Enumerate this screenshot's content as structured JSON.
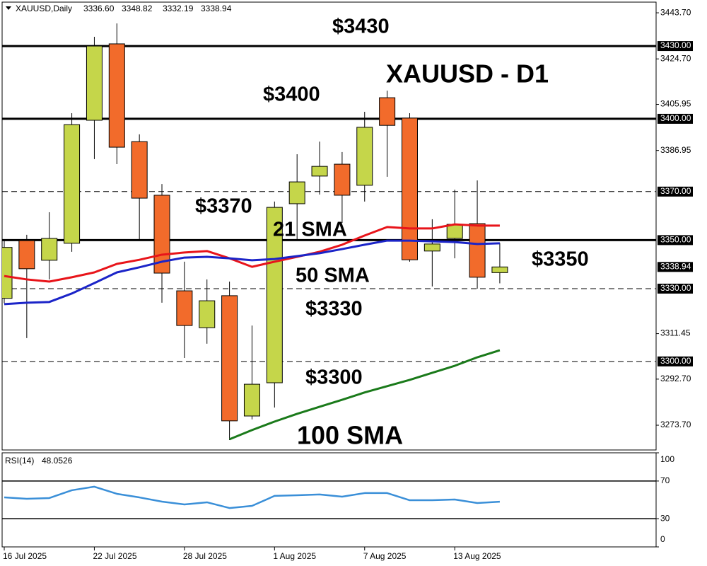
{
  "chart_data": {
    "type": "candlestick",
    "title": "XAUUSD,Daily",
    "ohlc_header": [
      {
        "value": 3336.6,
        "label": "3336.60"
      },
      {
        "value": 3348.82,
        "label": "3348.82"
      },
      {
        "value": 3332.19,
        "label": "3332.19"
      },
      {
        "value": 3338.94,
        "label": "3338.94"
      }
    ],
    "categories": [
      "16 Jul 2025",
      null,
      null,
      null,
      "22 Jul 2025",
      null,
      null,
      null,
      "28 Jul 2025",
      null,
      null,
      null,
      "1 Aug 2025",
      null,
      null,
      null,
      "7 Aug 2025",
      null,
      null,
      null,
      "13 Aug 2025",
      null,
      null
    ],
    "open": [
      3326.0,
      3349.8,
      3341.7,
      3348.7,
      3399.4,
      3430.9,
      3390.6,
      3368.5,
      3329.1,
      3313.9,
      3327.1,
      3277.5,
      3291.2,
      3365.0,
      3376.4,
      3381.3,
      3372.6,
      3408.7,
      3400.3,
      3345.5,
      3350.7,
      3356.8,
      3336.6
    ],
    "high": [
      3350.0,
      3352.2,
      3361.5,
      3402.3,
      3433.8,
      3439.3,
      3393.6,
      3373.1,
      3341.1,
      3333.8,
      3332.9,
      3314.8,
      3365.9,
      3385.4,
      3390.6,
      3386.3,
      3402.9,
      3411.6,
      3402.3,
      3358.6,
      3370.8,
      3374.6,
      3348.82
    ],
    "low": [
      3324.0,
      3309.6,
      3333.8,
      3345.2,
      3383.4,
      3381.3,
      3350.4,
      3324.2,
      3301.4,
      3307.3,
      3267.6,
      3276.1,
      3281.0,
      3349.8,
      3368.8,
      3357.1,
      3365.9,
      3376.1,
      3341.1,
      3330.9,
      3342.5,
      3330.0,
      3332.19
    ],
    "close": [
      3347.0,
      3338.2,
      3350.7,
      3397.6,
      3430.0,
      3388.3,
      3367.3,
      3336.4,
      3314.8,
      3325.0,
      3275.5,
      3290.6,
      3363.5,
      3374.0,
      3380.4,
      3368.5,
      3396.5,
      3397.3,
      3341.9,
      3348.4,
      3356.5,
      3334.7,
      3338.94
    ],
    "up_color": "#c5d64a",
    "down_color": "#f26b2b",
    "ylim": [
      3263.5,
      3448.1
    ],
    "yticks": [
      {
        "value": 3443.7,
        "label": "3443.70"
      },
      {
        "value": 3424.7,
        "label": "3424.70"
      },
      {
        "value": 3405.95,
        "label": "3405.95"
      },
      {
        "value": 3386.95,
        "label": "3386.95"
      },
      {
        "value": 3311.45,
        "label": "3311.45"
      },
      {
        "value": 3292.7,
        "label": "3292.70"
      },
      {
        "value": 3273.7,
        "label": "3273.70"
      }
    ],
    "levels": [
      {
        "value": 3430,
        "label": "3430.00",
        "style": "solid"
      },
      {
        "value": 3400,
        "label": "3400.00",
        "style": "solid"
      },
      {
        "value": 3370,
        "label": "3370.00",
        "style": "dashed"
      },
      {
        "value": 3350,
        "label": "3350.00",
        "style": "solid"
      },
      {
        "value": 3330,
        "label": "3330.00",
        "style": "dashed"
      },
      {
        "value": 3300,
        "label": "3300.00",
        "style": "dashed"
      }
    ],
    "last_price": {
      "value": 3338.94,
      "label": "3338.94"
    },
    "series": [
      {
        "name": "21 SMA",
        "color": "#e8141a",
        "values": [
          3335.2,
          3333.8,
          3332.9,
          3334.7,
          3336.7,
          3340.2,
          3341.9,
          3344.0,
          3344.9,
          3345.5,
          3342.5,
          3339.0,
          3341.1,
          3343.1,
          3345.2,
          3348.1,
          3351.9,
          3355.4,
          3354.8,
          3354.8,
          3356.5,
          3356.0,
          3356.0
        ]
      },
      {
        "name": "50 SMA",
        "color": "#1b24c8",
        "values": [
          3323.6,
          3324.2,
          3324.5,
          3328.0,
          3332.3,
          3336.7,
          3338.8,
          3341.1,
          3342.8,
          3343.1,
          3342.5,
          3341.7,
          3342.2,
          3343.4,
          3344.6,
          3346.3,
          3348.1,
          3349.8,
          3349.8,
          3349.5,
          3349.2,
          3348.4,
          3348.7
        ]
      },
      {
        "name": "100 SMA",
        "color": "#1a7a1a",
        "values": [
          null,
          null,
          null,
          null,
          null,
          null,
          null,
          null,
          null,
          null,
          3267.9,
          3271.7,
          3275.2,
          3278.4,
          3281.3,
          3284.2,
          3287.2,
          3289.8,
          3292.4,
          3295.3,
          3298.2,
          3301.7,
          3304.6
        ]
      }
    ],
    "annotations": [
      "$3430",
      "XAUUSD - D1",
      "$3400",
      "$3370",
      "$3350",
      "$3330",
      "$3300"
    ],
    "rsi": {
      "label": "RSI(14)",
      "color": "#3a8fd8",
      "values": [
        52.6,
        51.1,
        51.9,
        60.2,
        64.0,
        56.4,
        52.6,
        48.1,
        45.1,
        47.4,
        41.3,
        43.6,
        54.2,
        54.9,
        55.7,
        53.4,
        57.2,
        57.2,
        49.6,
        49.6,
        50.4,
        46.6,
        48.0526
      ],
      "ylim": [
        0,
        100
      ],
      "yticks": [
        100,
        70,
        30,
        0
      ],
      "levels": [
        70,
        30
      ]
    }
  }
}
